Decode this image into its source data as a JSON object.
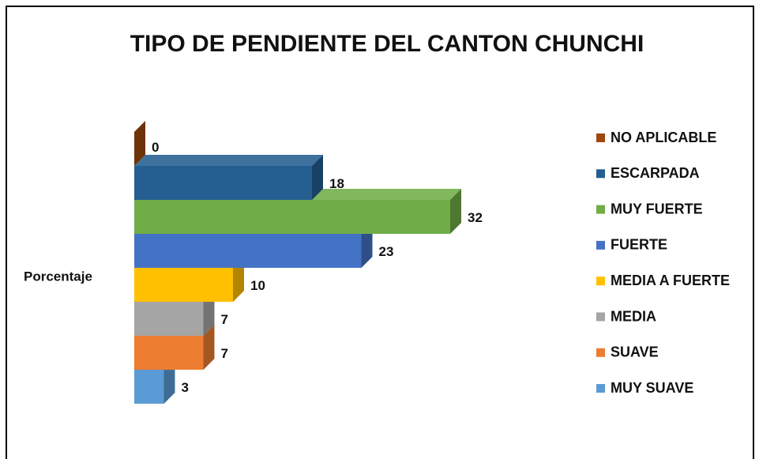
{
  "chart_data": {
    "type": "bar3d",
    "title": "TIPO DE PENDIENTE DEL CANTON CHUNCHI",
    "categories": [
      "Porcentaje"
    ],
    "series": [
      {
        "name": "NO APLICABLE",
        "color": "#9e480e",
        "values": [
          0
        ]
      },
      {
        "name": "ESCARPADA",
        "color": "#255e91",
        "values": [
          18
        ]
      },
      {
        "name": "MUY FUERTE",
        "color": "#70ad47",
        "values": [
          32
        ]
      },
      {
        "name": "FUERTE",
        "color": "#4472c4",
        "values": [
          23
        ]
      },
      {
        "name": "MEDIA A FUERTE",
        "color": "#ffc000",
        "values": [
          10
        ]
      },
      {
        "name": "MEDIA",
        "color": "#a5a5a5",
        "values": [
          7
        ]
      },
      {
        "name": "SUAVE",
        "color": "#ed7d31",
        "values": [
          7
        ]
      },
      {
        "name": "MUY SUAVE",
        "color": "#5b9bd5",
        "values": [
          3
        ]
      }
    ]
  }
}
